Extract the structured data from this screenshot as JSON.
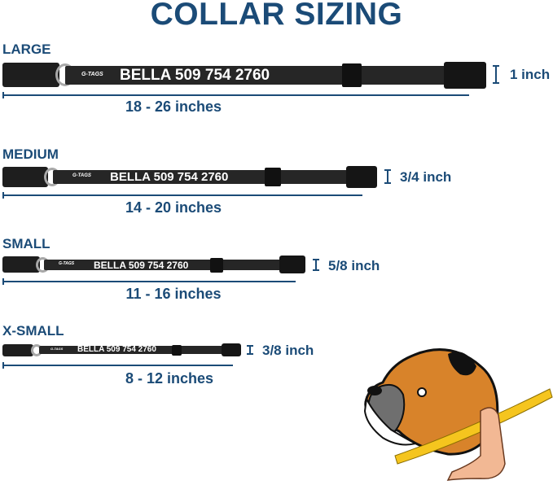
{
  "title": "COLLAR SIZING",
  "colors": {
    "heading": "#1b4b77",
    "collar": "#262626",
    "ring": "#a8a8a8"
  },
  "collar_text": "BELLA 509 754 2760",
  "logo_text": "G-TAGS",
  "sizes": [
    {
      "label": "LARGE",
      "range": "18 - 26 inches",
      "width": "1 inch"
    },
    {
      "label": "MEDIUM",
      "range": "14 - 20 inches",
      "width": "3/4 inch"
    },
    {
      "label": "SMALL",
      "range": "11 - 16 inches",
      "width": "5/8 inch"
    },
    {
      "label": "X-SMALL",
      "range": "8 - 12 inches",
      "width": "3/8 inch"
    }
  ],
  "illustration": "boxer-dog-with-measuring-tape"
}
